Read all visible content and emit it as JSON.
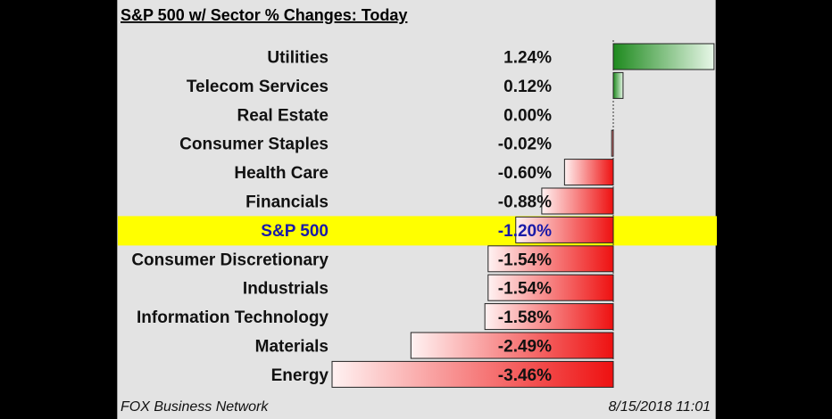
{
  "chart_data": {
    "type": "bar",
    "orientation": "horizontal",
    "title": "S&P 500 w/ Sector % Changes: Today",
    "categories": [
      "Utilities",
      "Telecom Services",
      "Real Estate",
      "Consumer Staples",
      "Health Care",
      "Financials",
      "S&P 500",
      "Consumer Discretionary",
      "Industrials",
      "Information Technology",
      "Materials",
      "Energy"
    ],
    "values": [
      1.24,
      0.12,
      0.0,
      -0.02,
      -0.6,
      -0.88,
      -1.2,
      -1.54,
      -1.54,
      -1.58,
      -2.49,
      -3.46
    ],
    "value_labels": [
      "1.24%",
      "0.12%",
      "0.00%",
      "-0.02%",
      "-0.60%",
      "-0.88%",
      "-1.20%",
      "-1.54%",
      "-1.54%",
      "-1.58%",
      "-2.49%",
      "-3.46%"
    ],
    "highlight_category": "S&P 500",
    "xlabel": "",
    "ylabel": "",
    "xlim": [
      -3.46,
      1.24
    ],
    "grid": false,
    "legend": "none"
  },
  "colors": {
    "positive": "#1e8a1e",
    "negative": "#ee1111",
    "highlight_band": "#ffff00",
    "highlight_text": "#1a1aa8",
    "panel_background": "#e3e3e3",
    "outer_background": "#000000"
  },
  "footer": {
    "source": "FOX Business Network",
    "timestamp": "8/15/2018 11:01"
  }
}
